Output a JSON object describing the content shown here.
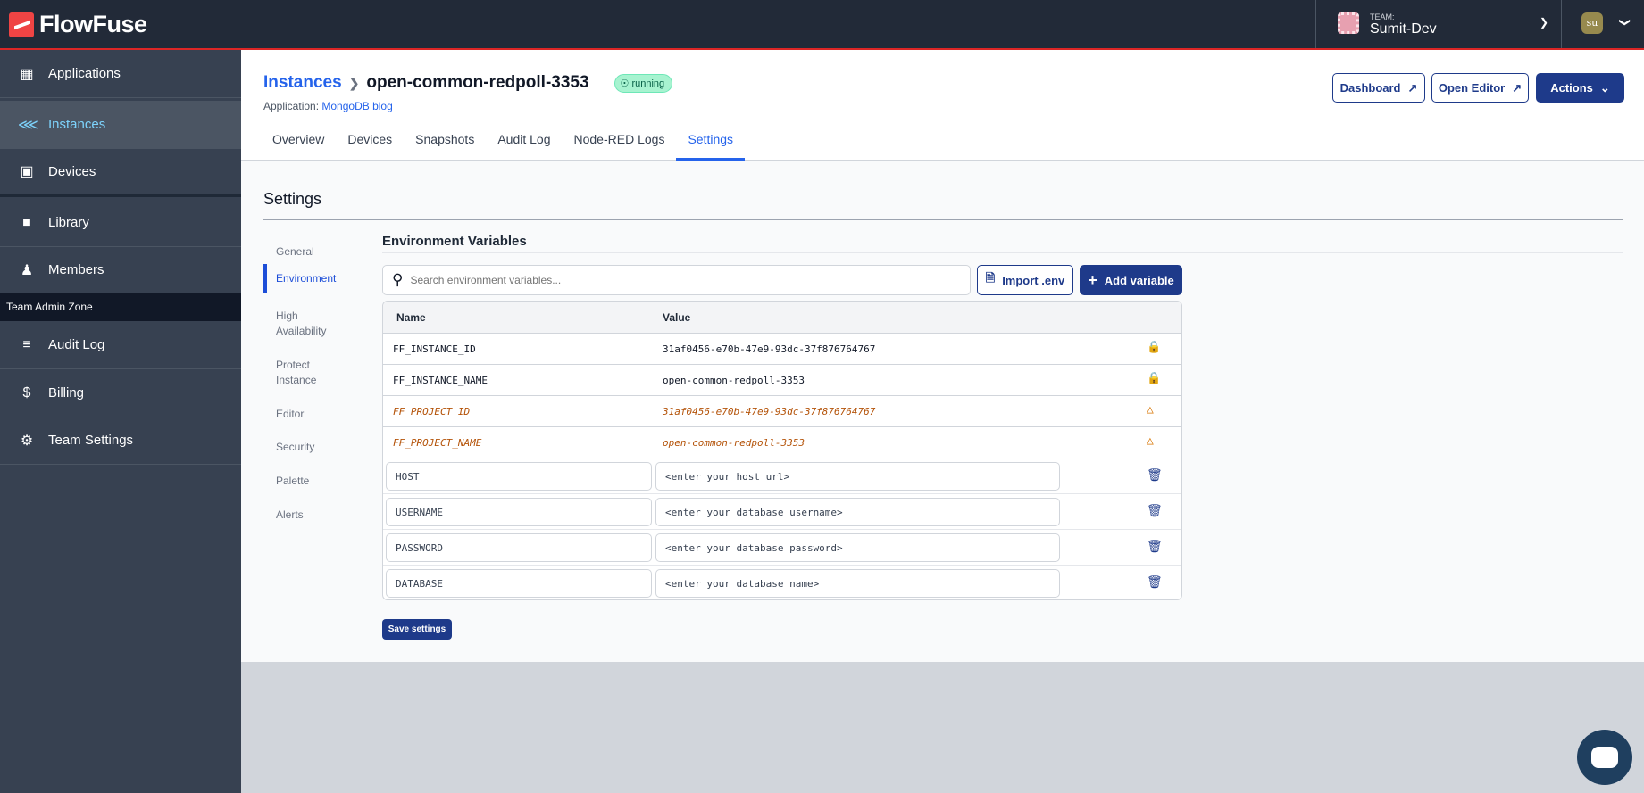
{
  "app": {
    "name": "FlowFuse"
  },
  "team": {
    "label": "TEAM:",
    "name": "Sumit-Dev"
  },
  "user": {
    "initials": "su"
  },
  "sidebar": {
    "items": [
      {
        "label": "Applications",
        "icon": "layout-icon"
      },
      {
        "label": "Instances",
        "icon": "instances-icon",
        "active": true
      },
      {
        "label": "Devices",
        "icon": "chip-icon"
      },
      {
        "label": "Library",
        "icon": "folder-icon"
      },
      {
        "label": "Members",
        "icon": "users-icon"
      }
    ],
    "zone_label": "Team Admin Zone",
    "admin_items": [
      {
        "label": "Audit Log",
        "icon": "database-icon"
      },
      {
        "label": "Billing",
        "icon": "dollar-icon"
      },
      {
        "label": "Team Settings",
        "icon": "gear-icon"
      }
    ]
  },
  "header": {
    "breadcrumb": "Instances",
    "title": "open-common-redpoll-3353",
    "status": "running",
    "app_label": "Application:",
    "app_name": "MongoDB blog",
    "buttons": {
      "dashboard": "Dashboard",
      "open_editor": "Open Editor",
      "actions": "Actions"
    },
    "tabs": [
      "Overview",
      "Devices",
      "Snapshots",
      "Audit Log",
      "Node-RED Logs",
      "Settings"
    ],
    "active_tab": "Settings"
  },
  "settings": {
    "title": "Settings",
    "nav": [
      "General",
      "Environment",
      "High Availability",
      "Protect Instance",
      "Editor",
      "Security",
      "Palette",
      "Alerts"
    ],
    "active_nav": "Environment",
    "env": {
      "title": "Environment Variables",
      "search_placeholder": "Search environment variables...",
      "import_label": "Import .env",
      "add_label": "Add variable",
      "columns": [
        "Name",
        "Value"
      ],
      "readonly_rows": [
        {
          "name": "FF_INSTANCE_ID",
          "value": "31af0456-e70b-47e9-93dc-37f876764767",
          "icon": "lock-icon"
        },
        {
          "name": "FF_INSTANCE_NAME",
          "value": "open-common-redpoll-3353",
          "icon": "lock-icon"
        },
        {
          "name": "FF_PROJECT_ID",
          "value": "31af0456-e70b-47e9-93dc-37f876764767",
          "icon": "warning-icon",
          "deprecated": true
        },
        {
          "name": "FF_PROJECT_NAME",
          "value": "open-common-redpoll-3353",
          "icon": "warning-icon",
          "deprecated": true
        }
      ],
      "editable_rows": [
        {
          "name": "HOST",
          "value": "<enter your host url>"
        },
        {
          "name": "USERNAME",
          "value": "<enter your database username>"
        },
        {
          "name": "PASSWORD",
          "value": "<enter your database password>"
        },
        {
          "name": "DATABASE",
          "value": "<enter your database name>"
        }
      ]
    },
    "save_label": "Save settings"
  },
  "colors": {
    "topbar": "#222a38",
    "sidebar": "#374151",
    "accent": "#2563eb",
    "primary": "#1e3a8a",
    "warning": "#b45309",
    "brand": "#ef4444"
  }
}
